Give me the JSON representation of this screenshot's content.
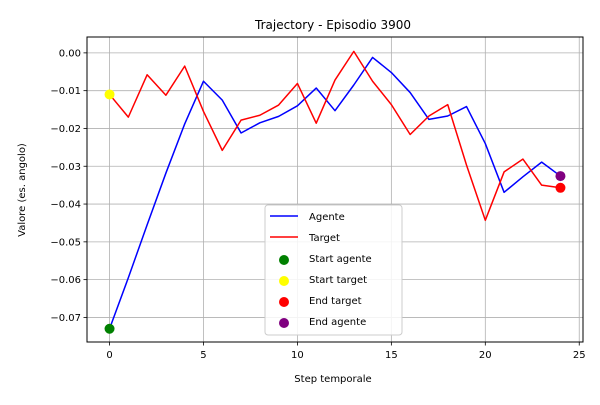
{
  "chart_data": {
    "type": "line",
    "title": "Trajectory - Episodio 3900",
    "xlabel": "Step temporale",
    "ylabel": "Valore (es. angolo)",
    "xlim": [
      -1.2,
      25.2
    ],
    "ylim": [
      -0.0765,
      0.0042
    ],
    "xticks": [
      0,
      5,
      10,
      15,
      20,
      25
    ],
    "yticks": [
      0.0,
      -0.01,
      -0.02,
      -0.03,
      -0.04,
      -0.05,
      -0.06,
      -0.07
    ],
    "ytick_labels": [
      "0.00",
      "−0.01",
      "−0.02",
      "−0.03",
      "−0.04",
      "−0.05",
      "−0.06",
      "−0.07"
    ],
    "grid": true,
    "legend_position": "lower center",
    "x": [
      0,
      1,
      2,
      3,
      4,
      5,
      6,
      7,
      8,
      9,
      10,
      11,
      12,
      13,
      14,
      15,
      16,
      17,
      18,
      19,
      20,
      21,
      22,
      23,
      24
    ],
    "series": [
      {
        "name": "Agente",
        "color": "#0000ff",
        "values": [
          -0.073,
          -0.0595,
          -0.0455,
          -0.0318,
          -0.0188,
          -0.0075,
          -0.0125,
          -0.0212,
          -0.0185,
          -0.0168,
          -0.014,
          -0.0093,
          -0.0153,
          -0.0085,
          -0.0012,
          -0.0052,
          -0.0105,
          -0.0176,
          -0.0167,
          -0.0142,
          -0.024,
          -0.0369,
          -0.0328,
          -0.0289,
          -0.0326
        ]
      },
      {
        "name": "Target",
        "color": "#ff0000",
        "values": [
          -0.011,
          -0.017,
          -0.0058,
          -0.0112,
          -0.0035,
          -0.0155,
          -0.0258,
          -0.0178,
          -0.0165,
          -0.0138,
          -0.0081,
          -0.0186,
          -0.0072,
          0.0004,
          -0.0075,
          -0.0137,
          -0.0216,
          -0.0167,
          -0.0137,
          -0.0297,
          -0.0443,
          -0.0315,
          -0.0281,
          -0.035,
          -0.0357
        ]
      }
    ],
    "markers": [
      {
        "name": "Start agente",
        "color": "#008000",
        "x": 0,
        "y": -0.073
      },
      {
        "name": "Start target",
        "color": "#ffff00",
        "x": 0,
        "y": -0.011
      },
      {
        "name": "End target",
        "color": "#ff0000",
        "x": 24,
        "y": -0.0357
      },
      {
        "name": "End agente",
        "color": "#800080",
        "x": 24,
        "y": -0.0326
      }
    ]
  }
}
